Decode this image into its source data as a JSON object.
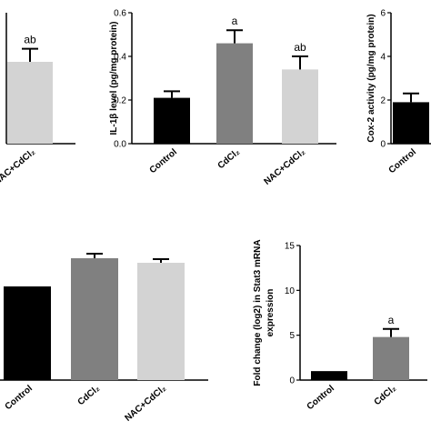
{
  "chart_data": [
    {
      "type": "bar",
      "categories": [
        "NAC+CdCl₂"
      ],
      "values": [
        0.375
      ],
      "errors": [
        0.06
      ],
      "colors": [
        "#d3d3d3"
      ],
      "significance": [
        "ab"
      ]
    },
    {
      "type": "bar",
      "ylabel": "IL-1β level (pg/mg protein)",
      "categories": [
        "Control",
        "CdCl₂",
        "NAC+CdCl₂"
      ],
      "values": [
        0.21,
        0.46,
        0.34
      ],
      "errors": [
        0.03,
        0.06,
        0.06
      ],
      "colors": [
        "#000000",
        "#808080",
        "#d3d3d3"
      ],
      "significance": [
        null,
        "a",
        "ab"
      ],
      "ylim": [
        0,
        0.6
      ],
      "yticks": [
        {
          "value": 0,
          "label": "0.0"
        },
        0.2,
        0.4,
        0.6
      ]
    },
    {
      "type": "bar",
      "ylabel": "Cox-2 activity (pg/mg protein)",
      "categories": [
        "Control"
      ],
      "values": [
        1.9
      ],
      "errors": [
        0.4
      ],
      "colors": [
        "#000000"
      ],
      "significance": [
        null
      ],
      "ylim": [
        0,
        6
      ],
      "yticks": [
        0,
        2,
        4,
        6
      ]
    },
    {
      "type": "bar",
      "categories": [
        "Control",
        "CdCl₂",
        "NAC+CdCl₂"
      ],
      "values": [
        1.03,
        1.34,
        1.29
      ],
      "errors": [
        0,
        0.05,
        0.04
      ],
      "colors": [
        "#000000",
        "#808080",
        "#d3d3d3"
      ],
      "significance": [
        null,
        null,
        null
      ]
    },
    {
      "type": "bar",
      "ylabel": [
        "Fold change (log2) in Stat3 mRNA",
        "expression"
      ],
      "categories": [
        "Control",
        "CdCl₂"
      ],
      "values": [
        1.0,
        4.8
      ],
      "errors": [
        0,
        0.9
      ],
      "colors": [
        "#000000",
        "#808080"
      ],
      "significance": [
        null,
        "a"
      ],
      "ylim": [
        0,
        15
      ],
      "yticks": [
        0,
        5,
        10,
        15
      ]
    }
  ]
}
